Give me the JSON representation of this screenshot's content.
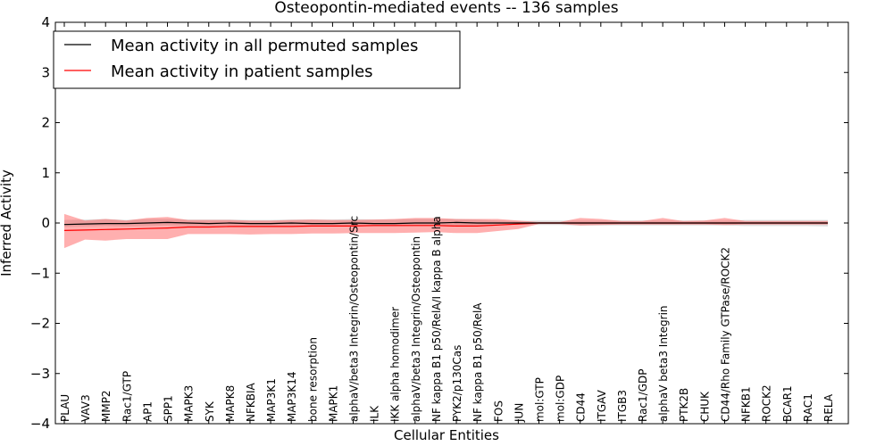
{
  "chart_data": {
    "type": "line",
    "title": "Osteopontin-mediated events -- 136 samples",
    "xlabel": "Cellular Entities",
    "ylabel": "Inferred Activity",
    "ylim": [
      -4,
      4
    ],
    "yticks": [
      -4,
      -3,
      -2,
      -1,
      0,
      1,
      2,
      3,
      4
    ],
    "ytick_labels": [
      "−4",
      "−3",
      "−2",
      "−1",
      "0",
      "1",
      "2",
      "3",
      "4"
    ],
    "grid": false,
    "legend_position": "top-left",
    "categories": [
      "PLAU",
      "VAV3",
      "MMP2",
      "Rac1/GTP",
      "AP1",
      "SPP1",
      "MAPK3",
      "SYK",
      "MAPK8",
      "NFKBIA",
      "MAP3K1",
      "MAP3K14",
      "bone resorption",
      "MAPK1",
      "alphaV/beta3 Integrin/Osteopontin/Src",
      "ILK",
      "IKK alpha homodimer",
      "alphaV/beta3 Integrin/Osteopontin",
      "NF kappa B1 p50/RelA/I kappa B alpha",
      "PYK2/p130Cas",
      "NF kappa B1 p50/RelA",
      "FOS",
      "JUN",
      "mol:GTP",
      "mol:GDP",
      "CD44",
      "ITGAV",
      "ITGB3",
      "Rac1/GDP",
      "alphaV beta3 Integrin",
      "PTK2B",
      "CHUK",
      "CD44/Rho Family GTPase/ROCK2",
      "NFKB1",
      "ROCK2",
      "BCAR1",
      "RAC1",
      "RELA"
    ],
    "series": [
      {
        "name": "Mean activity in all permuted samples",
        "color": "#000000",
        "values": [
          -0.03,
          -0.02,
          -0.01,
          -0.01,
          0.0,
          0.01,
          0.0,
          -0.01,
          0.0,
          -0.01,
          -0.01,
          0.0,
          -0.01,
          -0.01,
          0.0,
          -0.01,
          -0.01,
          0.0,
          0.0,
          0.01,
          0.0,
          0.0,
          0.0,
          0.0,
          0.0,
          0.0,
          0.0,
          0.0,
          0.0,
          0.0,
          0.0,
          0.0,
          0.0,
          0.0,
          0.0,
          0.0,
          0.0,
          0.0
        ],
        "band_lower": [
          -0.08,
          -0.07,
          -0.06,
          -0.07,
          -0.06,
          -0.05,
          -0.06,
          -0.06,
          -0.06,
          -0.07,
          -0.07,
          -0.07,
          -0.07,
          -0.07,
          -0.06,
          -0.07,
          -0.07,
          -0.06,
          -0.06,
          -0.06,
          -0.05,
          -0.04,
          -0.03,
          -0.04,
          -0.04,
          -0.05,
          -0.05,
          -0.05,
          -0.05,
          -0.05,
          -0.05,
          -0.05,
          -0.05,
          -0.06,
          -0.06,
          -0.06,
          -0.06,
          -0.07
        ],
        "band_upper": [
          0.06,
          0.07,
          0.08,
          0.06,
          0.08,
          0.08,
          0.07,
          0.07,
          0.07,
          0.06,
          0.06,
          0.07,
          0.07,
          0.07,
          0.08,
          0.07,
          0.07,
          0.08,
          0.08,
          0.08,
          0.07,
          0.05,
          0.04,
          0.05,
          0.05,
          0.05,
          0.05,
          0.05,
          0.05,
          0.05,
          0.05,
          0.05,
          0.05,
          0.06,
          0.06,
          0.06,
          0.06,
          0.06
        ]
      },
      {
        "name": "Mean activity in patient samples",
        "color": "#ff0000",
        "values": [
          -0.15,
          -0.14,
          -0.13,
          -0.12,
          -0.11,
          -0.1,
          -0.08,
          -0.08,
          -0.07,
          -0.07,
          -0.07,
          -0.07,
          -0.06,
          -0.06,
          -0.06,
          -0.05,
          -0.05,
          -0.05,
          -0.05,
          -0.06,
          -0.06,
          -0.04,
          -0.02,
          0.0,
          0.0,
          0.0,
          0.0,
          0.0,
          0.0,
          0.0,
          0.0,
          0.0,
          0.0,
          0.0,
          0.0,
          0.0,
          0.0,
          0.0
        ],
        "band_lower": [
          -0.5,
          -0.33,
          -0.35,
          -0.32,
          -0.32,
          -0.32,
          -0.22,
          -0.22,
          -0.22,
          -0.23,
          -0.22,
          -0.22,
          -0.21,
          -0.21,
          -0.2,
          -0.2,
          -0.2,
          -0.19,
          -0.18,
          -0.2,
          -0.2,
          -0.16,
          -0.12,
          -0.02,
          -0.02,
          -0.05,
          -0.04,
          -0.03,
          -0.03,
          -0.03,
          -0.03,
          -0.03,
          -0.04,
          -0.03,
          -0.03,
          -0.03,
          -0.03,
          -0.03
        ],
        "band_upper": [
          0.18,
          0.05,
          0.08,
          0.05,
          0.1,
          0.12,
          0.06,
          0.06,
          0.06,
          0.05,
          0.05,
          0.06,
          0.07,
          0.06,
          0.06,
          0.07,
          0.08,
          0.1,
          0.1,
          0.08,
          0.08,
          0.08,
          0.05,
          0.02,
          0.02,
          0.1,
          0.08,
          0.04,
          0.04,
          0.1,
          0.04,
          0.05,
          0.1,
          0.04,
          0.04,
          0.04,
          0.04,
          0.04
        ]
      }
    ]
  }
}
